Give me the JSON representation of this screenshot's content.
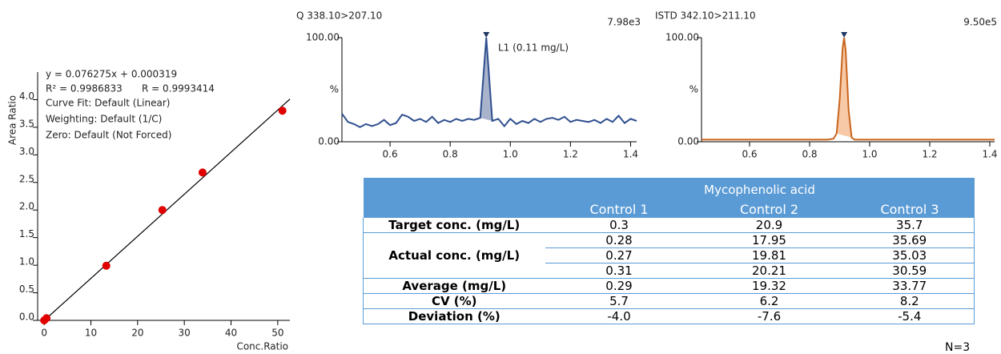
{
  "chart_data": [
    {
      "type": "scatter",
      "xlabel": "Conc.Ratio",
      "ylabel": "Area Ratio",
      "annotations": [
        "y = 0.076275x + 0.000319",
        "R² = 0.9986833",
        "R = 0.9993414",
        "Curve Fit: Default (Linear)",
        "Weighting: Default (1/C)",
        "Zero: Default (Not Forced)"
      ],
      "xlim": [
        -1.4,
        52.6
      ],
      "xticks": [
        0,
        10,
        20,
        30,
        40,
        50
      ],
      "ylim": [
        0,
        4.5
      ],
      "yticks": [
        {
          "value": 0,
          "label": "0.0"
        },
        {
          "value": 0.5,
          "label": "0.5"
        },
        {
          "value": 1,
          "label": "1.0"
        },
        {
          "value": 1.5,
          "label": "1.5"
        },
        {
          "value": 2,
          "label": "2.0"
        },
        {
          "value": 2.5,
          "label": "2.5"
        },
        {
          "value": 3,
          "label": "3.0"
        },
        {
          "value": 3.5,
          "label": "3.5"
        },
        {
          "value": 4,
          "label": "4.0"
        }
      ],
      "series": [
        {
          "style": "line",
          "color": "#000000",
          "x": [
            -0.5,
            52.6
          ],
          "values": [
            -0.04,
            4.01
          ]
        },
        {
          "style": "points",
          "color": "#e00000",
          "x": [
            0,
            0.5,
            13.3,
            25.3,
            33.9,
            51
          ],
          "values": [
            0,
            0.04,
            0.99,
            2.0,
            2.68,
            3.8
          ]
        }
      ]
    },
    {
      "type": "line",
      "title": "Q 338.10>207.10",
      "max_label": "7.98e3",
      "annotation": "L1 (0.11 mg/L)",
      "ylabel": "%",
      "xlim": [
        0.44,
        1.42
      ],
      "xticks": [
        0.6,
        0.8,
        {
          "value": 1,
          "label": "1.0"
        },
        1.2,
        1.4
      ],
      "ylim": [
        0,
        100
      ],
      "yticks": [
        {
          "value": 0,
          "label": "0.00"
        },
        {
          "value": 100,
          "label": "100.00"
        }
      ],
      "color": "#2f4f8f",
      "fill": "#a9b4cc",
      "fill_range": [
        0.9,
        0.94
      ],
      "x": [
        0.44,
        0.46,
        0.48,
        0.5,
        0.52,
        0.54,
        0.56,
        0.58,
        0.6,
        0.62,
        0.64,
        0.66,
        0.68,
        0.7,
        0.72,
        0.74,
        0.76,
        0.78,
        0.8,
        0.82,
        0.84,
        0.86,
        0.88,
        0.9,
        0.92,
        0.94,
        0.96,
        0.98,
        1.0,
        1.02,
        1.04,
        1.06,
        1.08,
        1.1,
        1.12,
        1.14,
        1.16,
        1.18,
        1.2,
        1.22,
        1.24,
        1.26,
        1.28,
        1.3,
        1.32,
        1.34,
        1.36,
        1.38,
        1.4,
        1.42
      ],
      "values": [
        27,
        19,
        17,
        14,
        17,
        15,
        17,
        21,
        16,
        18,
        26,
        24,
        20,
        22,
        19,
        24,
        18,
        21,
        19,
        22,
        20,
        22,
        21,
        23,
        100,
        20,
        22,
        15,
        22,
        17,
        20,
        18,
        22,
        19,
        22,
        23,
        21,
        24,
        19,
        21,
        20,
        19,
        21,
        18,
        22,
        19,
        25,
        18,
        22,
        20
      ]
    },
    {
      "type": "line",
      "title": "ISTD 342.10>211.10",
      "max_label": "9.50e5",
      "ylabel": "%",
      "xlim": [
        0.44,
        1.416
      ],
      "xticks": [
        0.6,
        0.8,
        {
          "value": 1,
          "label": "1.0"
        },
        1.2,
        1.4
      ],
      "ylim": [
        0,
        100
      ],
      "yticks": [
        {
          "value": 0,
          "label": "0.00"
        },
        {
          "value": 100,
          "label": "100.00"
        }
      ],
      "color": "#c8641e",
      "fill": "#f7c9a6",
      "fill_range": [
        0.89,
        0.94
      ],
      "x": [
        0.44,
        0.5,
        0.6,
        0.7,
        0.8,
        0.86,
        0.88,
        0.89,
        0.9,
        0.91,
        0.915,
        0.92,
        0.93,
        0.94,
        0.95,
        1.0,
        1.1,
        1.2,
        1.3,
        1.416
      ],
      "values": [
        2,
        2,
        2,
        2,
        2,
        2,
        3,
        8,
        40,
        90,
        100,
        88,
        30,
        4,
        2,
        2,
        2,
        2,
        2,
        2
      ]
    }
  ],
  "table": {
    "title": "Mycophenolic acid",
    "columns": [
      "Control 1",
      "Control 2",
      "Control 3"
    ],
    "rows": [
      {
        "label": "Target conc. (mg/L)",
        "values": [
          [
            "0.3",
            "20.9",
            "35.7"
          ]
        ]
      },
      {
        "label": "Actual conc. (mg/L)",
        "values": [
          [
            "0.28",
            "17.95",
            "35.69"
          ],
          [
            "0.27",
            "19.81",
            "35.03"
          ],
          [
            "0.31",
            "20.21",
            "30.59"
          ]
        ]
      },
      {
        "label": "Average (mg/L)",
        "values": [
          [
            "0.29",
            "19.32",
            "33.77"
          ]
        ]
      },
      {
        "label": "CV (%)",
        "values": [
          [
            "5.7",
            "6.2",
            "8.2"
          ]
        ]
      },
      {
        "label": "Deviation (%)",
        "values": [
          [
            "-4.0",
            "-7.6",
            "-5.4"
          ]
        ]
      }
    ],
    "note": "N=3"
  }
}
